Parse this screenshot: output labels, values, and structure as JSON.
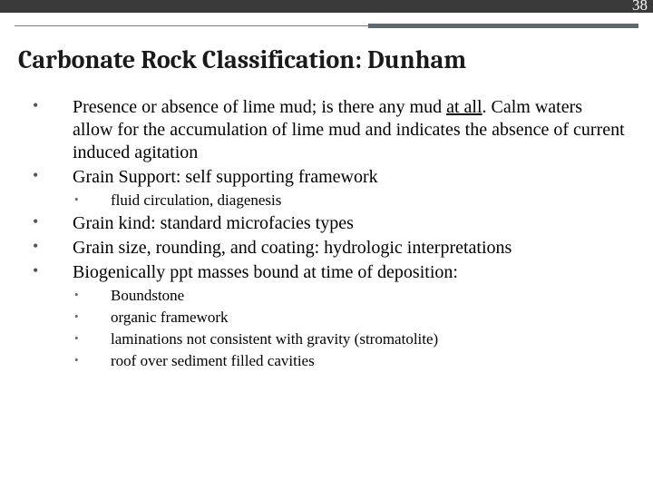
{
  "page_number": "38",
  "title": "Carbonate Rock Classification: Dunham",
  "colors": {
    "top_bar": "#3a3a3a",
    "divider_accent": "#5b6b6f",
    "divider_light": "#7a7a7a",
    "text": "#000000",
    "background": "#ffffff"
  },
  "bullets": {
    "b1_pre": "Presence or absence of lime mud; is there any mud ",
    "b1_underline": "at all",
    "b1_post": ". Calm waters allow for the accumulation of lime mud and indicates the absence of current induced agitation",
    "b2": "Grain Support: self supporting framework",
    "b2_sub1": "fluid circulation, diagenesis",
    "b3": "Grain kind: standard microfacies types",
    "b4": "Grain size, rounding, and coating: hydrologic interpretations",
    "b5": "Biogenically ppt masses bound at time of deposition:",
    "b5_sub1": "Boundstone",
    "b5_sub2": "organic framework",
    "b5_sub3": "laminations not consistent with gravity (stromatolite)",
    "b5_sub4": "roof over sediment filled cavities"
  }
}
